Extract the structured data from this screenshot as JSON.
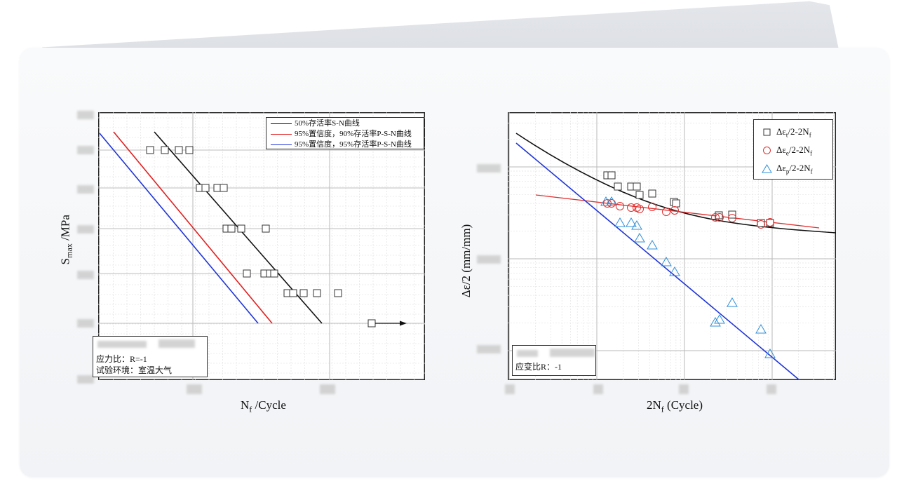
{
  "chart_data": [
    {
      "type": "line",
      "xlabel": "N",
      "xlabel_sub": "f",
      "xlabel_suffix": " /Cycle",
      "ylabel": "S",
      "ylabel_sub": "max",
      "ylabel_suffix": " /MPa",
      "x_scale": "log",
      "grid": true,
      "legend_position": "top-right",
      "series": [
        {
          "name": "50%存活率S-N曲线",
          "color": "#111111",
          "x": [
            1000,
            1060000
          ],
          "y": [
            630,
            375
          ]
        },
        {
          "name": "95%置信度，90%存活率P-S-N曲线",
          "color": "#e02020",
          "x": [
            2000,
            1060000
          ],
          "y": [
            630,
            375
          ]
        },
        {
          "name": "95%置信度，95%存活率P-S-N曲线",
          "color": "#1f35d6",
          "x": [
            1000,
            1060000
          ],
          "y": [
            630,
            375
          ]
        }
      ],
      "scatter_values": [],
      "note_lines": [
        "应力比：R=-1",
        "试验环境：室温大气"
      ],
      "runout_arrow": true
    },
    {
      "type": "scatter",
      "xlabel": "2N",
      "xlabel_sub": "f",
      "xlabel_suffix": " (Cycle)",
      "ylabel": "Δε/2 (mm/mm)",
      "x_scale": "log",
      "y_scale": "log",
      "grid": true,
      "legend_position": "top-right",
      "series": [
        {
          "name": "Δε",
          "sub": "t",
          "suffix": "/2-2N",
          "sub2": "f",
          "marker": "square",
          "color": "#333333"
        },
        {
          "name": "Δε",
          "sub": "e",
          "suffix": "/2-2N",
          "sub2": "f",
          "marker": "circle",
          "color": "#e03030"
        },
        {
          "name": "Δε",
          "sub": "p",
          "suffix": "/2-2N",
          "sub2": "f",
          "marker": "triangle",
          "color": "#2f8fd8"
        }
      ],
      "note_lines": [
        "应变比R：-1"
      ]
    }
  ]
}
